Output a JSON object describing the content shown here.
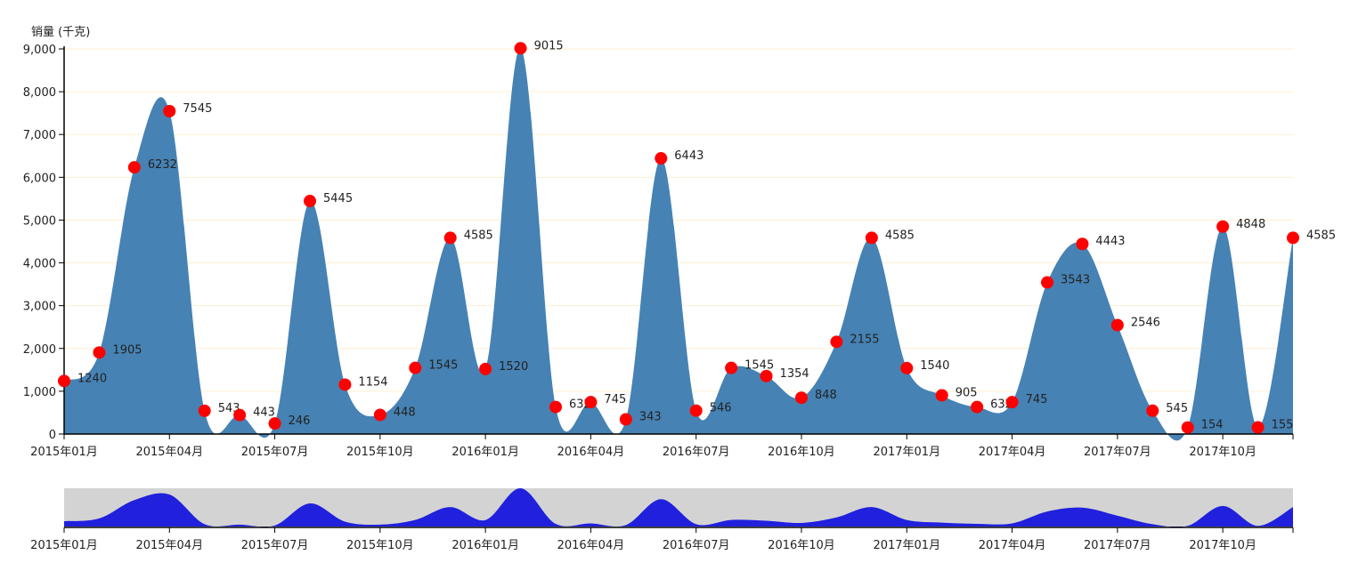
{
  "chart_data": {
    "type": "area",
    "ylabel": "销量 (千克)",
    "ylim": [
      0,
      9000
    ],
    "yticks": [
      "0",
      "1,000",
      "2,000",
      "3,000",
      "4,000",
      "5,000",
      "6,000",
      "7,000",
      "8,000",
      "9,000"
    ],
    "xticks": [
      "2015年01月",
      "2015年04月",
      "2015年07月",
      "2015年10月",
      "2016年01月",
      "2016年04月",
      "2016年07月",
      "2016年10月",
      "2017年01月",
      "2017年04月",
      "2017年07月",
      "2017年10月"
    ],
    "x": [
      "2015-01",
      "2015-02",
      "2015-03",
      "2015-04",
      "2015-05",
      "2015-06",
      "2015-07",
      "2015-08",
      "2015-09",
      "2015-10",
      "2015-11",
      "2015-12",
      "2016-01",
      "2016-02",
      "2016-03",
      "2016-04",
      "2016-05",
      "2016-06",
      "2016-07",
      "2016-08",
      "2016-09",
      "2016-10",
      "2016-11",
      "2016-12",
      "2017-01",
      "2017-02",
      "2017-03",
      "2017-04",
      "2017-05",
      "2017-06",
      "2017-07",
      "2017-08",
      "2017-09",
      "2017-10",
      "2017-11",
      "2017-12"
    ],
    "values": [
      1240,
      1905,
      6232,
      7545,
      543,
      443,
      246,
      5445,
      1154,
      448,
      1545,
      4585,
      1520,
      9015,
      632,
      745,
      343,
      6443,
      546,
      1545,
      1354,
      848,
      2155,
      4585,
      1540,
      905,
      632,
      745,
      3543,
      4443,
      2546,
      545,
      154,
      4848,
      155,
      4585
    ],
    "grid": true,
    "colors": {
      "area": "#4682b4",
      "point": "#ff0000",
      "brush_area": "#2020dd",
      "brush_bg": "#d3d3d3",
      "grid": "#fdf0d0"
    }
  }
}
